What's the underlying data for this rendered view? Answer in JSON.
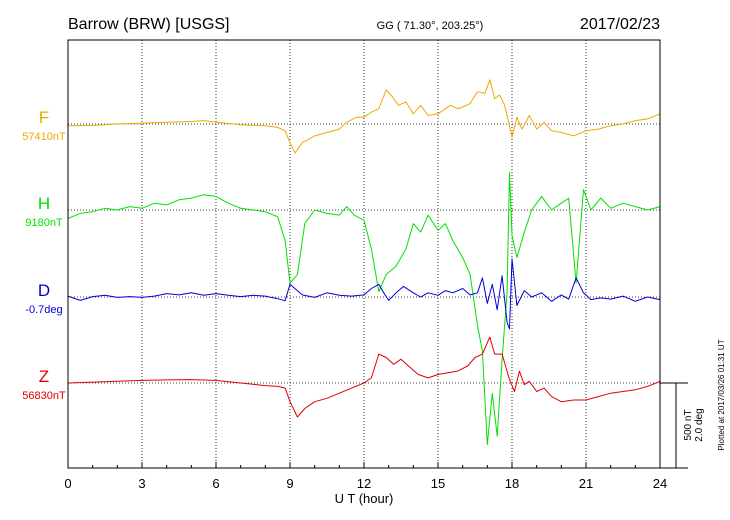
{
  "header": {
    "station": "Barrow (BRW)  [USGS]",
    "coords": "GG ( 71.30°, 203.25°)",
    "date": "2017/02/23"
  },
  "footer": {
    "plotted": "Plotted at 2017/03/26 01:31  UT"
  },
  "scale_bar": {
    "nt": "500 nT",
    "deg": "2.0 deg"
  },
  "chart_data": {
    "type": "line",
    "xlabel": "U T (hour)",
    "xlim": [
      0,
      24
    ],
    "xticks": [
      0,
      3,
      6,
      9,
      12,
      15,
      18,
      21,
      24
    ],
    "grid": true,
    "series": [
      {
        "name": "F",
        "baseline_label": "57410nT",
        "color": "#f0a800",
        "points": [
          [
            0,
            57400
          ],
          [
            1,
            57402
          ],
          [
            2,
            57410
          ],
          [
            3,
            57415
          ],
          [
            4,
            57420
          ],
          [
            5,
            57425
          ],
          [
            5.5,
            57430
          ],
          [
            6,
            57420
          ],
          [
            7,
            57405
          ],
          [
            8,
            57400
          ],
          [
            8.5,
            57390
          ],
          [
            8.8,
            57370
          ],
          [
            9,
            57300
          ],
          [
            9.2,
            57240
          ],
          [
            9.5,
            57300
          ],
          [
            10,
            57340
          ],
          [
            10.5,
            57360
          ],
          [
            11,
            57380
          ],
          [
            11.3,
            57420
          ],
          [
            11.7,
            57450
          ],
          [
            12,
            57450
          ],
          [
            12.3,
            57480
          ],
          [
            12.6,
            57500
          ],
          [
            12.9,
            57610
          ],
          [
            13.1,
            57580
          ],
          [
            13.4,
            57520
          ],
          [
            13.7,
            57540
          ],
          [
            14,
            57470
          ],
          [
            14.3,
            57520
          ],
          [
            14.6,
            57460
          ],
          [
            15,
            57470
          ],
          [
            15.5,
            57520
          ],
          [
            15.8,
            57500
          ],
          [
            16,
            57510
          ],
          [
            16.3,
            57530
          ],
          [
            16.6,
            57600
          ],
          [
            16.9,
            57590
          ],
          [
            17.1,
            57670
          ],
          [
            17.3,
            57560
          ],
          [
            17.5,
            57580
          ],
          [
            17.7,
            57520
          ],
          [
            17.9,
            57400
          ],
          [
            18,
            57330
          ],
          [
            18.2,
            57450
          ],
          [
            18.4,
            57380
          ],
          [
            18.7,
            57460
          ],
          [
            19,
            57380
          ],
          [
            19.3,
            57420
          ],
          [
            19.6,
            57370
          ],
          [
            20,
            57360
          ],
          [
            20.5,
            57340
          ],
          [
            21,
            57370
          ],
          [
            21.5,
            57380
          ],
          [
            22,
            57400
          ],
          [
            22.5,
            57410
          ],
          [
            23,
            57430
          ],
          [
            23.5,
            57440
          ],
          [
            24,
            57470
          ]
        ]
      },
      {
        "name": "H",
        "baseline_label": "9180nT",
        "color": "#00e000",
        "points": [
          [
            0,
            9130
          ],
          [
            0.5,
            9160
          ],
          [
            1,
            9170
          ],
          [
            1.5,
            9190
          ],
          [
            2,
            9180
          ],
          [
            2.5,
            9200
          ],
          [
            3,
            9190
          ],
          [
            3.5,
            9220
          ],
          [
            4,
            9210
          ],
          [
            4.5,
            9240
          ],
          [
            5,
            9250
          ],
          [
            5.5,
            9270
          ],
          [
            6,
            9260
          ],
          [
            6.5,
            9220
          ],
          [
            7,
            9190
          ],
          [
            7.5,
            9180
          ],
          [
            8,
            9170
          ],
          [
            8.5,
            9140
          ],
          [
            8.8,
            9000
          ],
          [
            9,
            8750
          ],
          [
            9.3,
            8800
          ],
          [
            9.6,
            9100
          ],
          [
            10,
            9180
          ],
          [
            10.5,
            9160
          ],
          [
            11,
            9150
          ],
          [
            11.3,
            9200
          ],
          [
            11.6,
            9150
          ],
          [
            12,
            9120
          ],
          [
            12.3,
            8950
          ],
          [
            12.6,
            8700
          ],
          [
            12.9,
            8800
          ],
          [
            13.3,
            8850
          ],
          [
            13.7,
            8950
          ],
          [
            14,
            9100
          ],
          [
            14.3,
            9050
          ],
          [
            14.6,
            9150
          ],
          [
            15,
            9060
          ],
          [
            15.3,
            9100
          ],
          [
            15.6,
            9000
          ],
          [
            16,
            8900
          ],
          [
            16.3,
            8800
          ],
          [
            16.6,
            8500
          ],
          [
            16.8,
            8350
          ],
          [
            17,
            7800
          ],
          [
            17.2,
            8100
          ],
          [
            17.4,
            7850
          ],
          [
            17.6,
            8300
          ],
          [
            17.8,
            8700
          ],
          [
            17.9,
            9400
          ],
          [
            18,
            9030
          ],
          [
            18.2,
            8900
          ],
          [
            18.5,
            9050
          ],
          [
            18.8,
            9180
          ],
          [
            19.2,
            9260
          ],
          [
            19.6,
            9180
          ],
          [
            20,
            9220
          ],
          [
            20.3,
            9250
          ],
          [
            20.6,
            8750
          ],
          [
            20.9,
            9300
          ],
          [
            21.2,
            9180
          ],
          [
            21.6,
            9250
          ],
          [
            22,
            9190
          ],
          [
            22.5,
            9220
          ],
          [
            23,
            9200
          ],
          [
            23.5,
            9180
          ],
          [
            24,
            9200
          ]
        ]
      },
      {
        "name": "D",
        "baseline_label": "-0.7deg",
        "color": "#0000d8",
        "points": [
          [
            0,
            -0.68
          ],
          [
            0.5,
            -0.78
          ],
          [
            1,
            -0.69
          ],
          [
            1.5,
            -0.66
          ],
          [
            2,
            -0.71
          ],
          [
            2.5,
            -0.69
          ],
          [
            3,
            -0.71
          ],
          [
            3.5,
            -0.68
          ],
          [
            4,
            -0.62
          ],
          [
            4.5,
            -0.65
          ],
          [
            5,
            -0.6
          ],
          [
            5.5,
            -0.66
          ],
          [
            6,
            -0.62
          ],
          [
            6.5,
            -0.66
          ],
          [
            7,
            -0.69
          ],
          [
            7.5,
            -0.66
          ],
          [
            8,
            -0.68
          ],
          [
            8.5,
            -0.74
          ],
          [
            8.8,
            -0.79
          ],
          [
            9,
            -0.4
          ],
          [
            9.2,
            -0.5
          ],
          [
            9.5,
            -0.65
          ],
          [
            10,
            -0.71
          ],
          [
            10.5,
            -0.6
          ],
          [
            11,
            -0.66
          ],
          [
            11.5,
            -0.68
          ],
          [
            12,
            -0.65
          ],
          [
            12.3,
            -0.5
          ],
          [
            12.6,
            -0.4
          ],
          [
            12.8,
            -0.6
          ],
          [
            13,
            -0.78
          ],
          [
            13.3,
            -0.6
          ],
          [
            13.6,
            -0.45
          ],
          [
            14,
            -0.6
          ],
          [
            14.3,
            -0.7
          ],
          [
            14.6,
            -0.6
          ],
          [
            15,
            -0.66
          ],
          [
            15.3,
            -0.55
          ],
          [
            15.6,
            -0.6
          ],
          [
            16,
            -0.5
          ],
          [
            16.3,
            -0.65
          ],
          [
            16.6,
            -0.6
          ],
          [
            16.8,
            -0.25
          ],
          [
            17,
            -0.85
          ],
          [
            17.2,
            -0.4
          ],
          [
            17.4,
            -1.0
          ],
          [
            17.6,
            -0.2
          ],
          [
            17.8,
            -1.3
          ],
          [
            17.9,
            -1.45
          ],
          [
            18,
            0.2
          ],
          [
            18.2,
            -0.9
          ],
          [
            18.5,
            -0.55
          ],
          [
            18.8,
            -0.7
          ],
          [
            19.2,
            -0.6
          ],
          [
            19.6,
            -0.8
          ],
          [
            20,
            -0.65
          ],
          [
            20.3,
            -0.75
          ],
          [
            20.6,
            -0.25
          ],
          [
            20.9,
            -0.6
          ],
          [
            21.2,
            -0.76
          ],
          [
            21.6,
            -0.72
          ],
          [
            22,
            -0.75
          ],
          [
            22.5,
            -0.68
          ],
          [
            23,
            -0.8
          ],
          [
            23.5,
            -0.7
          ],
          [
            24,
            -0.76
          ]
        ]
      },
      {
        "name": "Z",
        "baseline_label": "56830nT",
        "color": "#e00000",
        "points": [
          [
            0,
            56830
          ],
          [
            1,
            56835
          ],
          [
            2,
            56840
          ],
          [
            3,
            56845
          ],
          [
            4,
            56848
          ],
          [
            5,
            56850
          ],
          [
            6,
            56845
          ],
          [
            7,
            56830
          ],
          [
            8,
            56815
          ],
          [
            8.5,
            56810
          ],
          [
            8.8,
            56800
          ],
          [
            9,
            56720
          ],
          [
            9.3,
            56630
          ],
          [
            9.6,
            56680
          ],
          [
            10,
            56720
          ],
          [
            10.5,
            56740
          ],
          [
            11,
            56770
          ],
          [
            11.5,
            56800
          ],
          [
            12,
            56830
          ],
          [
            12.3,
            56860
          ],
          [
            12.6,
            57000
          ],
          [
            12.9,
            56980
          ],
          [
            13.2,
            56940
          ],
          [
            13.5,
            56970
          ],
          [
            13.8,
            56930
          ],
          [
            14.2,
            56880
          ],
          [
            14.6,
            56860
          ],
          [
            15,
            56880
          ],
          [
            15.4,
            56890
          ],
          [
            15.8,
            56900
          ],
          [
            16.2,
            56930
          ],
          [
            16.5,
            56980
          ],
          [
            16.8,
            57000
          ],
          [
            17.1,
            57100
          ],
          [
            17.3,
            57000
          ],
          [
            17.6,
            57000
          ],
          [
            17.9,
            56850
          ],
          [
            18.1,
            56780
          ],
          [
            18.3,
            56900
          ],
          [
            18.5,
            56820
          ],
          [
            18.7,
            56840
          ],
          [
            19,
            56780
          ],
          [
            19.3,
            56800
          ],
          [
            19.6,
            56750
          ],
          [
            20,
            56720
          ],
          [
            20.5,
            56730
          ],
          [
            21,
            56730
          ],
          [
            21.5,
            56750
          ],
          [
            22,
            56770
          ],
          [
            22.5,
            56780
          ],
          [
            23,
            56790
          ],
          [
            23.5,
            56810
          ],
          [
            24,
            56840
          ]
        ]
      }
    ]
  }
}
